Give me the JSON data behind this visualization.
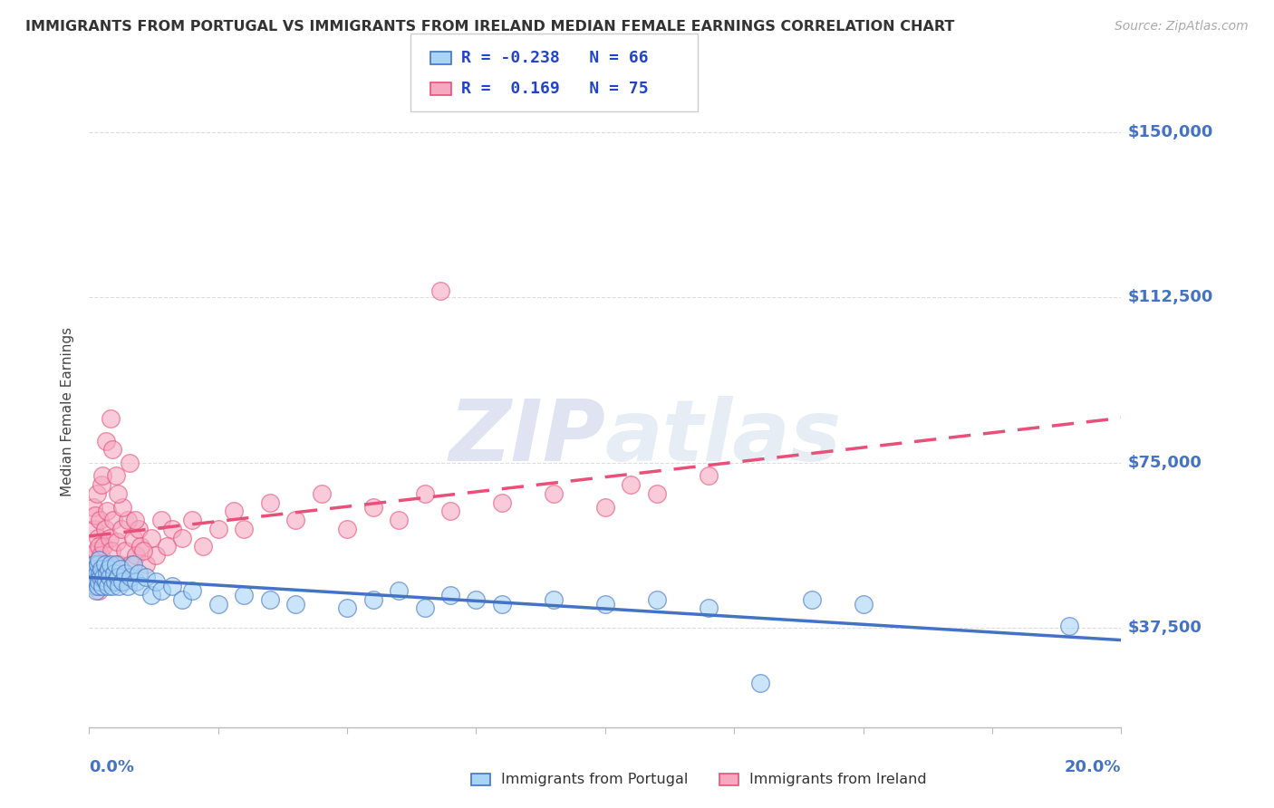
{
  "title": "IMMIGRANTS FROM PORTUGAL VS IMMIGRANTS FROM IRELAND MEDIAN FEMALE EARNINGS CORRELATION CHART",
  "source": "Source: ZipAtlas.com",
  "ylabel": "Median Female Earnings",
  "xmin": 0.0,
  "xmax": 20.0,
  "ymin": 15000,
  "ymax": 158000,
  "yticks": [
    37500,
    75000,
    112500,
    150000
  ],
  "ytick_labels": [
    "$37,500",
    "$75,000",
    "$112,500",
    "$150,000"
  ],
  "color_portugal_fill": "#a8d4f5",
  "color_portugal_edge": "#4472C4",
  "color_ireland_fill": "#f5a8c0",
  "color_ireland_edge": "#E8507A",
  "color_axis_labels": "#4472C4",
  "color_trendline_portugal": "#4472C4",
  "color_trendline_ireland": "#E8507A",
  "portugal_x": [
    0.05,
    0.07,
    0.09,
    0.1,
    0.11,
    0.12,
    0.13,
    0.14,
    0.15,
    0.16,
    0.17,
    0.18,
    0.19,
    0.2,
    0.22,
    0.24,
    0.26,
    0.28,
    0.3,
    0.32,
    0.34,
    0.36,
    0.38,
    0.4,
    0.42,
    0.45,
    0.48,
    0.5,
    0.52,
    0.55,
    0.58,
    0.6,
    0.65,
    0.7,
    0.75,
    0.8,
    0.85,
    0.9,
    0.95,
    1.0,
    1.1,
    1.2,
    1.3,
    1.4,
    1.6,
    1.8,
    2.0,
    2.5,
    3.0,
    3.5,
    4.0,
    5.0,
    5.5,
    6.0,
    6.5,
    7.0,
    7.5,
    8.0,
    9.0,
    10.0,
    11.0,
    12.0,
    13.0,
    14.0,
    15.0,
    19.0
  ],
  "portugal_y": [
    50000,
    48000,
    52000,
    47000,
    49000,
    51000,
    48000,
    46000,
    50000,
    52000,
    47000,
    53000,
    48000,
    50000,
    49000,
    51000,
    47000,
    49000,
    52000,
    48000,
    50000,
    47000,
    51000,
    49000,
    52000,
    47000,
    50000,
    48000,
    52000,
    49000,
    47000,
    51000,
    48000,
    50000,
    47000,
    49000,
    52000,
    48000,
    50000,
    47000,
    49000,
    45000,
    48000,
    46000,
    47000,
    44000,
    46000,
    43000,
    45000,
    44000,
    43000,
    42000,
    44000,
    46000,
    42000,
    45000,
    44000,
    43000,
    44000,
    43000,
    44000,
    42000,
    25000,
    44000,
    43000,
    38000
  ],
  "ireland_x": [
    0.05,
    0.07,
    0.08,
    0.09,
    0.1,
    0.11,
    0.12,
    0.13,
    0.14,
    0.15,
    0.16,
    0.17,
    0.18,
    0.19,
    0.2,
    0.22,
    0.24,
    0.26,
    0.28,
    0.3,
    0.32,
    0.35,
    0.38,
    0.4,
    0.43,
    0.46,
    0.5,
    0.54,
    0.58,
    0.62,
    0.66,
    0.7,
    0.75,
    0.8,
    0.85,
    0.9,
    0.95,
    1.0,
    1.1,
    1.2,
    1.3,
    1.4,
    1.5,
    1.6,
    1.8,
    2.0,
    2.2,
    2.5,
    2.8,
    3.0,
    3.5,
    4.0,
    5.0,
    5.5,
    6.0,
    6.5,
    7.0,
    8.0,
    9.0,
    10.0,
    10.5,
    11.0,
    12.0,
    0.25,
    0.33,
    0.42,
    0.52,
    0.65,
    0.78,
    0.88,
    1.05,
    0.45,
    0.55,
    4.5,
    6.8
  ],
  "ireland_y": [
    54000,
    50000,
    65000,
    52000,
    60000,
    48000,
    63000,
    55000,
    47000,
    68000,
    52000,
    58000,
    46000,
    56000,
    62000,
    54000,
    70000,
    52000,
    56000,
    60000,
    48000,
    64000,
    50000,
    58000,
    55000,
    62000,
    50000,
    57000,
    52000,
    60000,
    48000,
    55000,
    62000,
    52000,
    58000,
    54000,
    60000,
    56000,
    52000,
    58000,
    54000,
    62000,
    56000,
    60000,
    58000,
    62000,
    56000,
    60000,
    64000,
    60000,
    66000,
    62000,
    60000,
    65000,
    62000,
    68000,
    64000,
    66000,
    68000,
    65000,
    70000,
    68000,
    72000,
    72000,
    80000,
    85000,
    72000,
    65000,
    75000,
    62000,
    55000,
    78000,
    68000,
    68000,
    114000
  ]
}
